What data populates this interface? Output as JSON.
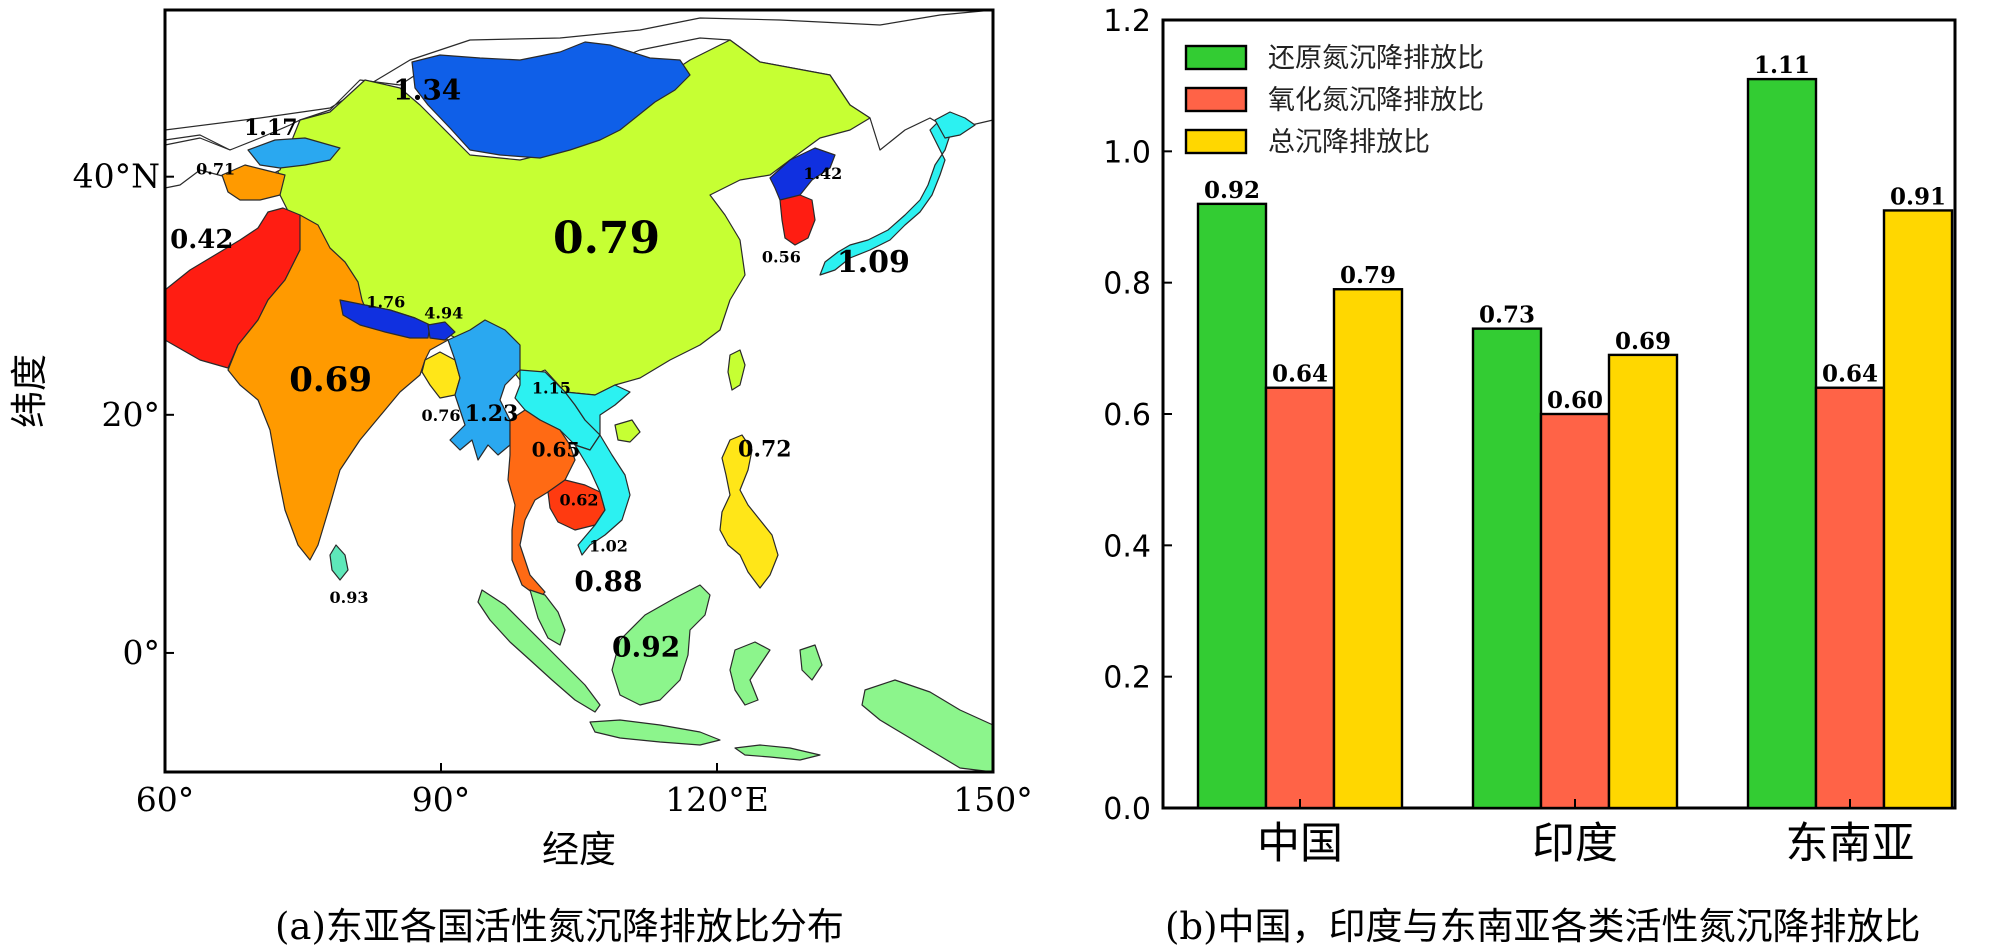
{
  "map_panel": {
    "x_axis_label": "经度",
    "y_axis_label": "纬度",
    "x_ticks": [
      {
        "label": "60°",
        "lon": 60
      },
      {
        "label": "90°",
        "lon": 90
      },
      {
        "label": "120°E",
        "lon": 120
      },
      {
        "label": "150°",
        "lon": 150
      }
    ],
    "y_ticks": [
      {
        "label": "40°N",
        "lat": 40
      },
      {
        "label": "20°",
        "lat": 20
      },
      {
        "label": "0°",
        "lat": 0
      }
    ],
    "lon_range": [
      60,
      150
    ],
    "lat_range": [
      -10,
      54
    ],
    "colors": {
      "ocean": "#ffffff",
      "china": "#c6ff33",
      "mongolia": "#0f5fe8",
      "light_blue": "#2aa8f0",
      "cyan": "#2cf1f1",
      "red": "#ff1d12",
      "dark_orange": "#ff6a14",
      "orange": "#ff9a00",
      "yellow": "#ffe618",
      "mint": "#5ee8b9",
      "green": "#8cf58c",
      "dark_blue": "#1030e0"
    },
    "value_labels": [
      {
        "text": "1.34",
        "lon": 88.5,
        "lat": 46.5
      },
      {
        "text": "1.17",
        "lon": 71.5,
        "lat": 43.5
      },
      {
        "text": "0.71",
        "lon": 65.5,
        "lat": 40.2
      },
      {
        "text": "0.42",
        "lon": 64,
        "lat": 34
      },
      {
        "text": "0.79",
        "lon": 108,
        "lat": 33.6
      },
      {
        "text": "1.42",
        "lon": 131.5,
        "lat": 39.8
      },
      {
        "text": "0.56",
        "lon": 127,
        "lat": 32.8
      },
      {
        "text": "1.09",
        "lon": 137,
        "lat": 32
      },
      {
        "text": "1.76",
        "lon": 84,
        "lat": 29
      },
      {
        "text": "4.94",
        "lon": 90.3,
        "lat": 28.1
      },
      {
        "text": "0.69",
        "lon": 78,
        "lat": 22
      },
      {
        "text": "1.15",
        "lon": 102,
        "lat": 21.8
      },
      {
        "text": "1.23",
        "lon": 95.5,
        "lat": 19.5
      },
      {
        "text": "0.76",
        "lon": 90,
        "lat": 19.5
      },
      {
        "text": "0.65",
        "lon": 102.5,
        "lat": 16.5
      },
      {
        "text": "0.72",
        "lon": 125.2,
        "lat": 16.5
      },
      {
        "text": "0.62",
        "lon": 105,
        "lat": 12.4
      },
      {
        "text": "1.02",
        "lon": 108.2,
        "lat": 8.5
      },
      {
        "text": "0.88",
        "lon": 108.2,
        "lat": 5.2
      },
      {
        "text": "0.92",
        "lon": 112.3,
        "lat": -0.3
      },
      {
        "text": "0.93",
        "lon": 80,
        "lat": 4.2
      }
    ],
    "caption": "(a)东亚各国活性氮沉降排放比分布"
  },
  "chart_data": {
    "type": "bar",
    "categories": [
      "中国",
      "印度",
      "东南亚"
    ],
    "series": [
      {
        "name": "还原氮沉降排放比",
        "values": [
          0.92,
          0.73,
          1.11
        ],
        "color": "#33cc33"
      },
      {
        "name": "氧化氮沉降排放比",
        "values": [
          0.64,
          0.6,
          0.64
        ],
        "color": "#ff6347"
      },
      {
        "name": "总沉降排放比",
        "values": [
          0.79,
          0.69,
          0.91
        ],
        "color": "#ffd700"
      }
    ],
    "ylim": [
      0,
      1.2
    ],
    "yticks": [
      "0.0",
      "0.2",
      "0.4",
      "0.6",
      "0.8",
      "1.0",
      "1.2"
    ],
    "legend_position": "top-left",
    "grid": false,
    "caption": "(b)中国，印度与东南亚各类活性氮沉降排放比"
  }
}
